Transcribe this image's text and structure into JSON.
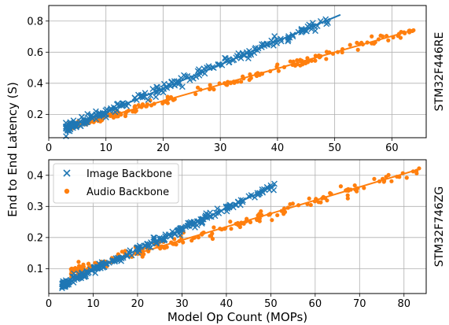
{
  "colors": {
    "image": "#1f77b4",
    "audio": "#ff7f0e",
    "grid": "#b0b0b0"
  },
  "ylabel": "End to End Latency (S)",
  "xlabel": "Model Op Count (MOPs)",
  "legend": {
    "image": "Image Backbone",
    "audio": "Audio Backbone",
    "placement": "upper-left (bottom panel)"
  },
  "chart_data": [
    {
      "type": "scatter",
      "facet_label": "STM32F446RE",
      "xlim": [
        0,
        66
      ],
      "ylim": [
        0.05,
        0.9
      ],
      "xticks": [
        0,
        10,
        20,
        30,
        40,
        50,
        60
      ],
      "yticks": [
        0.2,
        0.4,
        0.6,
        0.8
      ],
      "grid": true,
      "series": [
        {
          "name": "Image Backbone",
          "marker": "x",
          "x_range": [
            3,
            51
          ],
          "slope": 0.01525,
          "intercept": 0.062,
          "noise": 0.014,
          "fit": {
            "x": [
              3,
              51
            ],
            "y": [
              0.108,
              0.84
            ]
          }
        },
        {
          "name": "Audio Backbone",
          "marker": "o",
          "x_range": [
            3.5,
            64
          ],
          "slope": 0.01043,
          "intercept": 0.078,
          "noise": 0.012,
          "fit": {
            "x": [
              3.5,
              64
            ],
            "y": [
              0.115,
              0.745
            ]
          }
        }
      ]
    },
    {
      "type": "scatter",
      "facet_label": "STM32F746ZG",
      "xlim": [
        0,
        85
      ],
      "ylim": [
        0.02,
        0.45
      ],
      "xticks": [
        0,
        10,
        20,
        30,
        40,
        50,
        60,
        70,
        80
      ],
      "yticks": [
        0.1,
        0.2,
        0.3,
        0.4
      ],
      "grid": true,
      "series": [
        {
          "name": "Image Backbone",
          "marker": "x",
          "x_range": [
            3,
            51
          ],
          "slope": 0.00665,
          "intercept": 0.028,
          "noise": 0.006,
          "fit": {
            "x": [
              3,
              51
            ],
            "y": [
              0.047,
              0.368
            ]
          }
        },
        {
          "name": "Audio Backbone",
          "marker": "o",
          "x_range": [
            5,
            83.5
          ],
          "slope": 0.00421,
          "intercept": 0.066,
          "noise": 0.009,
          "fit": {
            "x": [
              5,
              83.5
            ],
            "y": [
              0.085,
              0.42
            ]
          }
        }
      ]
    }
  ]
}
